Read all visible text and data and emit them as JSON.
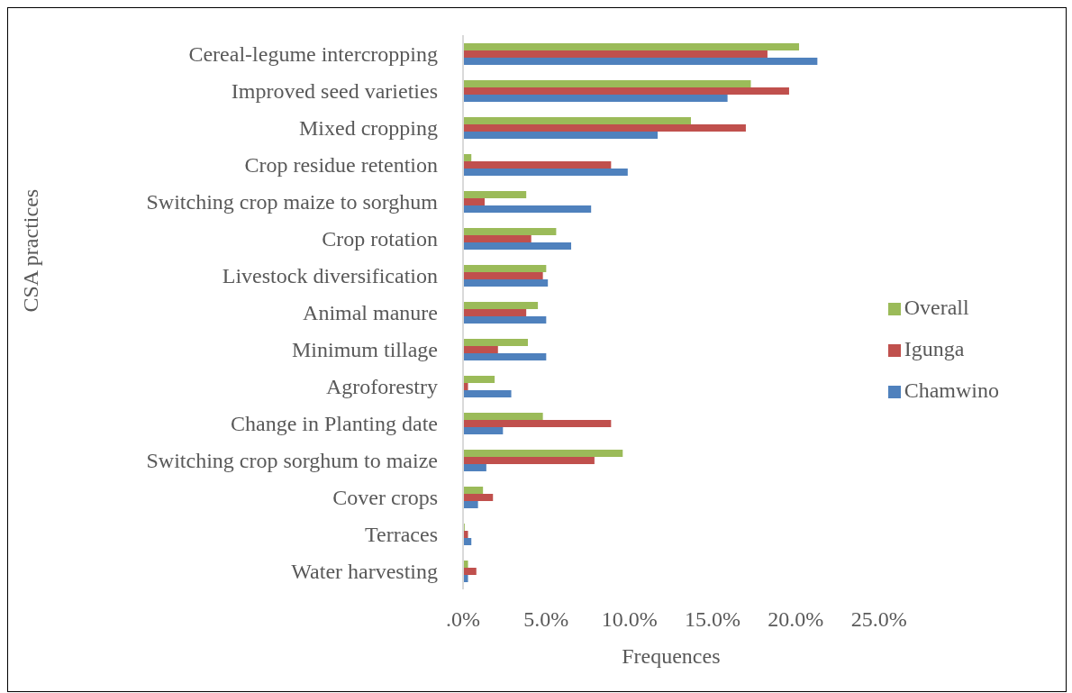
{
  "chart_data": {
    "type": "bar",
    "orientation": "horizontal",
    "xlabel": "Frequences",
    "ylabel": "CSA practices",
    "categories": [
      "Cereal-legume intercropping",
      "Improved seed varieties",
      "Mixed cropping",
      "Crop residue retention",
      "Switching crop  maize to sorghum",
      "Crop rotation",
      "Livestock diversification",
      "Animal manure",
      "Minimum  tillage",
      "Agroforestry",
      "Change in Planting date",
      "Switching crop sorghum to maize",
      "Cover crops",
      "Terraces",
      "Water harvesting"
    ],
    "series": [
      {
        "name": "Overall",
        "color": "#9bbb59",
        "values": [
          20.2,
          17.3,
          13.7,
          0.5,
          3.8,
          5.6,
          5.0,
          4.5,
          3.9,
          1.9,
          4.8,
          9.6,
          1.2,
          0.1,
          0.3
        ]
      },
      {
        "name": "Igunga",
        "color": "#c0504d",
        "values": [
          18.3,
          19.6,
          17.0,
          8.9,
          1.3,
          4.1,
          4.8,
          3.8,
          2.1,
          0.3,
          8.9,
          7.9,
          1.8,
          0.3,
          0.8
        ]
      },
      {
        "name": "Chamwino",
        "color": "#4f81bd",
        "values": [
          21.3,
          15.9,
          11.7,
          9.9,
          7.7,
          6.5,
          5.1,
          5.0,
          5.0,
          2.9,
          2.4,
          1.4,
          0.9,
          0.5,
          0.3
        ]
      }
    ],
    "xlim": [
      0,
      25
    ],
    "xticks": [
      {
        "value": 0,
        "label": ".0%"
      },
      {
        "value": 5,
        "label": "5.0%"
      },
      {
        "value": 10,
        "label": "10.0%"
      },
      {
        "value": 15,
        "label": "15.0%"
      },
      {
        "value": 20,
        "label": "20.0%"
      },
      {
        "value": 25,
        "label": "25.0%"
      }
    ],
    "grid": false,
    "legend": "right"
  }
}
